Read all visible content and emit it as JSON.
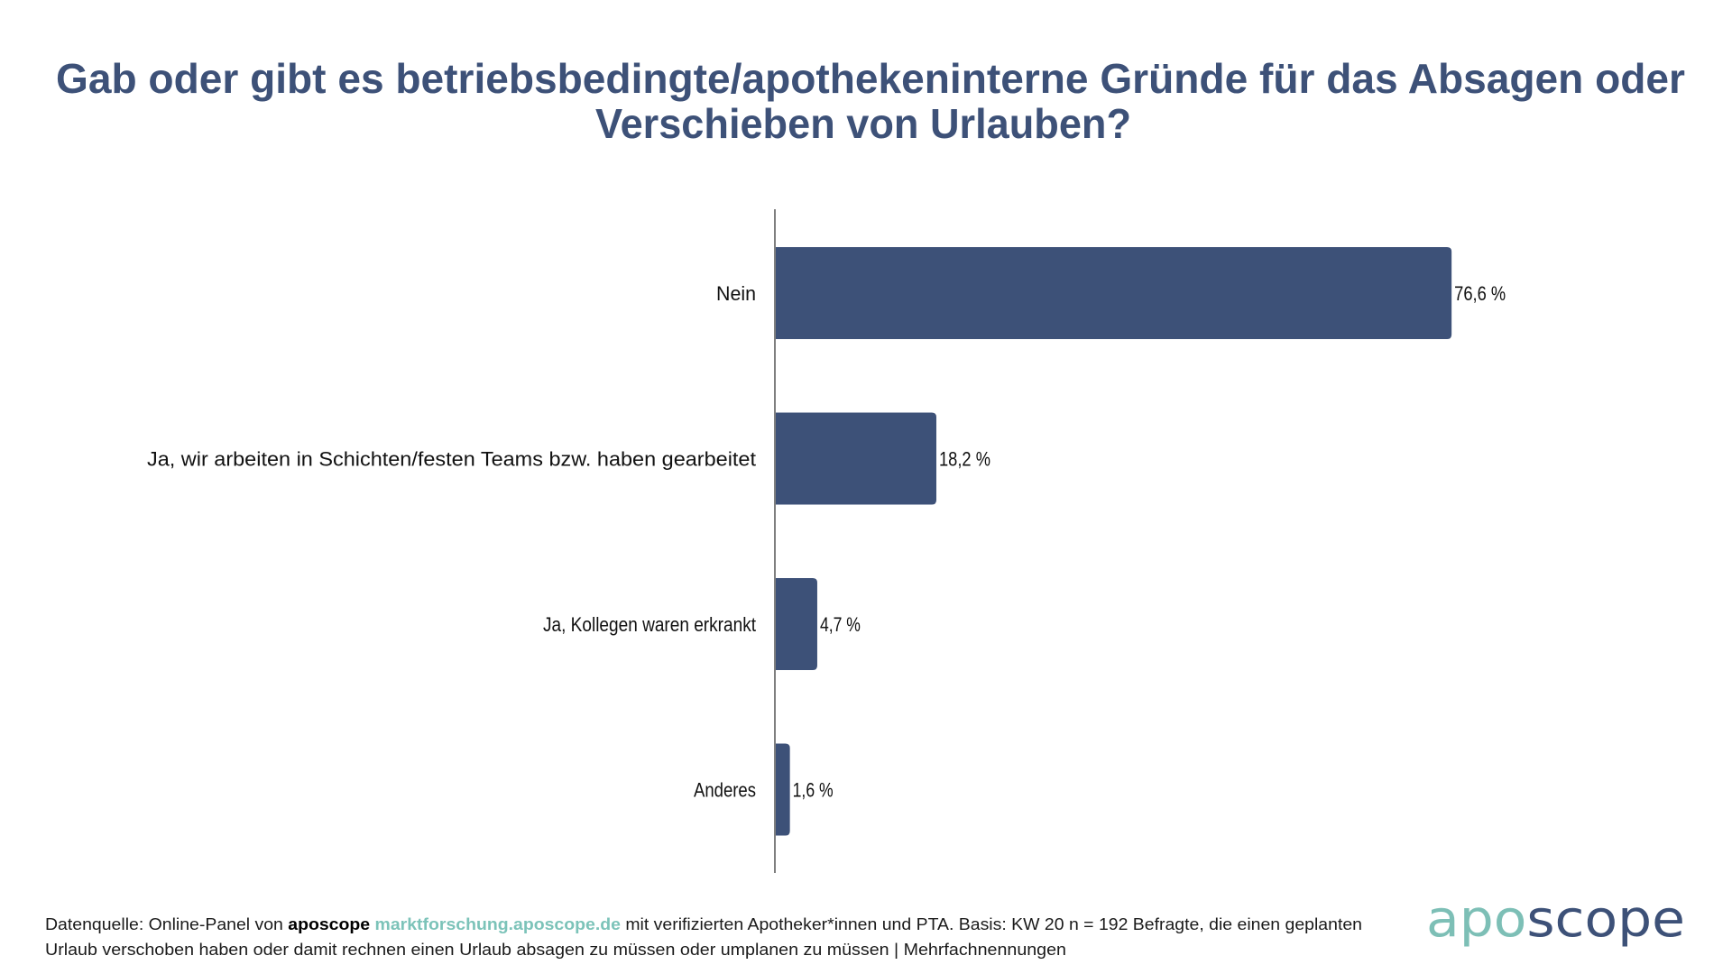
{
  "colors": {
    "bar": "#3d5178",
    "title": "#3d5178",
    "brand_teal": "#7cc3b9",
    "axis": "#555555"
  },
  "chart_data": {
    "type": "bar",
    "orientation": "horizontal",
    "title": "Gab oder gibt es betriebsbedingte/apothekeninterne Gründe für das Absagen oder Verschieben von Urlauben?",
    "title_lines": [
      "Gab oder gibt es betriebsbedingte/apothekeninterne Gründe für das Absagen oder",
      "Verschieben von Urlauben?"
    ],
    "categories": [
      "Nein",
      "Ja, wir arbeiten in Schichten/festen Teams bzw. haben gearbeitet",
      "Ja, Kollegen waren erkrankt",
      "Anderes"
    ],
    "values": [
      76.6,
      18.2,
      4.7,
      1.6
    ],
    "value_labels": [
      "76,6 %",
      "18,2 %",
      "4,7 %",
      "1,6 %"
    ],
    "unit": "%",
    "xlim": [
      0,
      100
    ],
    "xlabel": "",
    "ylabel": "",
    "grid": false,
    "legend": "none"
  },
  "footer": {
    "line1_prefix": "Datenquelle: Online-Panel von ",
    "brand_bold": "aposcope",
    "link": "marktforschung.aposcope.de",
    "line1_suffix": " mit verifizierten Apotheker*innen und PTA. Basis: KW 20 n = 192 Befragte, die einen geplanten",
    "line2": "Urlaub verschoben haben oder damit rechnen einen Urlaub absagen zu müssen oder umplanen zu müssen | Mehrfachnennungen"
  },
  "logo": {
    "part1": "apo",
    "part2": "scope"
  }
}
